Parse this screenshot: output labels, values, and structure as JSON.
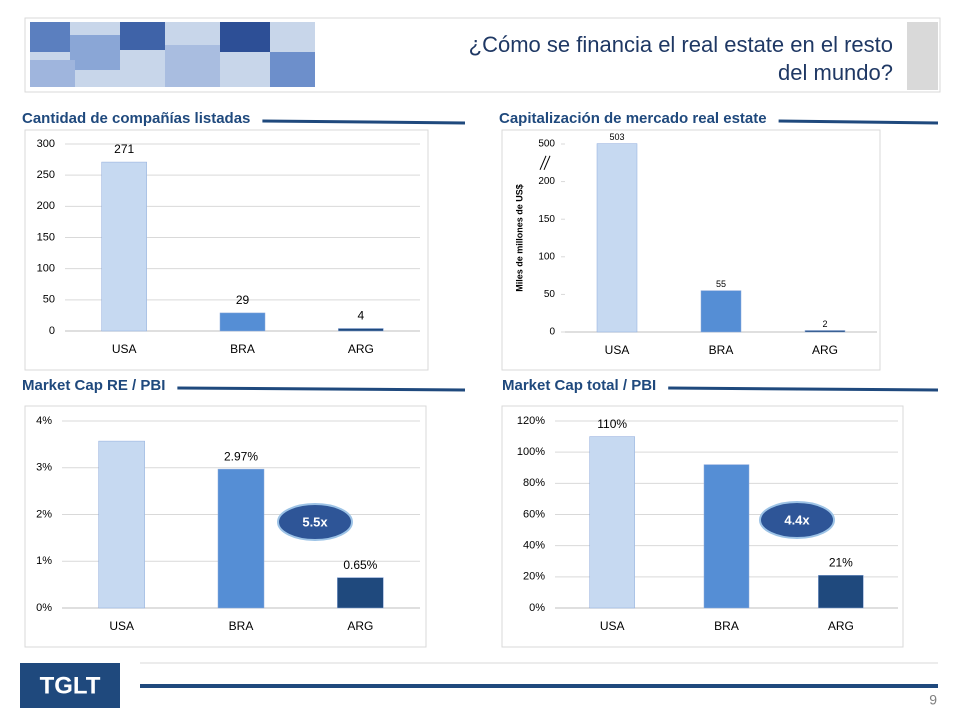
{
  "header": {
    "title_line1": "¿Cómo se financia el real estate en el resto",
    "title_line2": "del mundo?",
    "logo": "TGLT",
    "page": "9"
  },
  "chart_data": [
    {
      "type": "bar",
      "title": "Cantidad de compañías listadas",
      "categories": [
        "USA",
        "BRA",
        "ARG"
      ],
      "values": [
        271,
        29,
        4
      ],
      "colors": [
        "#c6d9f1",
        "#558ed5",
        "#1f497d"
      ],
      "ylim": [
        0,
        300
      ],
      "yticks": [
        0,
        50,
        100,
        150,
        200,
        250,
        300
      ],
      "grid": true
    },
    {
      "type": "bar",
      "title": "Capitalización de mercado real estate",
      "ylabel": "Miles de millones de US$",
      "categories": [
        "USA",
        "BRA",
        "ARG"
      ],
      "values": [
        503,
        55,
        2
      ],
      "colors": [
        "#c6d9f1",
        "#558ed5",
        "#1f497d"
      ],
      "ylim": [
        0,
        500
      ],
      "yticks": [
        0,
        50,
        100,
        150,
        200,
        500
      ],
      "axis_break": true,
      "grid": false
    },
    {
      "type": "bar",
      "title": "Market Cap RE / PBI",
      "categories": [
        "USA",
        "BRA",
        "ARG"
      ],
      "values": [
        3.57,
        2.97,
        0.65
      ],
      "value_labels": [
        null,
        "2.97%",
        "0.65%"
      ],
      "colors": [
        "#c6d9f1",
        "#558ed5",
        "#1f497d"
      ],
      "ylim": [
        0,
        4
      ],
      "yticks": [
        {
          "value": 0,
          "label": "0%"
        },
        {
          "value": 1,
          "label": "1%"
        },
        {
          "value": 2,
          "label": "2%"
        },
        {
          "value": 3,
          "label": "3%"
        },
        {
          "value": 4,
          "label": "4%"
        }
      ],
      "grid": true,
      "annotation": "5.5x"
    },
    {
      "type": "bar",
      "title": "Market Cap total / PBI",
      "categories": [
        "USA",
        "BRA",
        "ARG"
      ],
      "values": [
        110,
        92,
        21
      ],
      "value_labels": [
        "110%",
        null,
        "21%"
      ],
      "colors": [
        "#c6d9f1",
        "#558ed5",
        "#1f497d"
      ],
      "ylim": [
        0,
        120
      ],
      "yticks": [
        {
          "value": 0,
          "label": "0%"
        },
        {
          "value": 20,
          "label": "20%"
        },
        {
          "value": 40,
          "label": "40%"
        },
        {
          "value": 60,
          "label": "60%"
        },
        {
          "value": 80,
          "label": "80%"
        },
        {
          "value": 100,
          "label": "100%"
        },
        {
          "value": 120,
          "label": "120%"
        }
      ],
      "grid": true,
      "annotation": "4.4x"
    }
  ]
}
